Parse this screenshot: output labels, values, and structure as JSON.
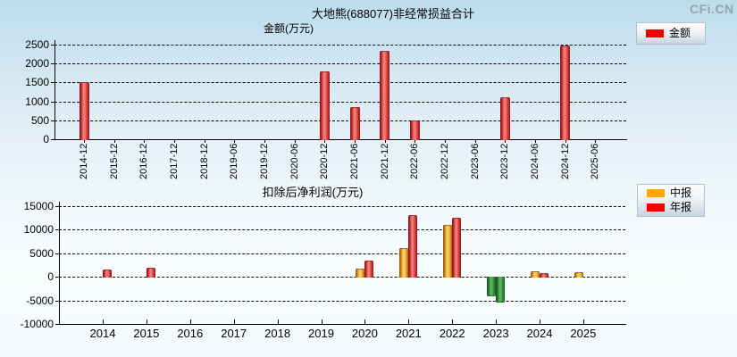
{
  "page": {
    "logo": "CFi.CN"
  },
  "colors": {
    "red": "#ee0000",
    "orange": "#ffa800",
    "green": "#2e8b3a"
  },
  "chart_data": [
    {
      "type": "bar",
      "title": "大地熊(688077)非经常损益合计",
      "ylabel": "金额(万元)",
      "legend": [
        {
          "label": "金额",
          "color_key": "red"
        }
      ],
      "legend_position": "top-right",
      "grid": true,
      "categories": [
        "2014-12",
        "2015-12",
        "2016-12",
        "2017-12",
        "2018-12",
        "2019-06",
        "2019-12",
        "2020-06",
        "2020-12",
        "2021-06",
        "2021-12",
        "2022-06",
        "2022-12",
        "2023-06",
        "2023-12",
        "2024-06",
        "2024-12",
        "2025-06"
      ],
      "values": [
        1520,
        null,
        null,
        null,
        null,
        null,
        null,
        null,
        1800,
        860,
        2330,
        500,
        null,
        null,
        1120,
        null,
        2480,
        null
      ],
      "ylim": [
        0,
        2500
      ],
      "yticks": [
        0,
        500,
        1000,
        1500,
        2000,
        2500
      ]
    },
    {
      "type": "bar",
      "title": "扣除后净利润(万元)",
      "legend": [
        {
          "label": "中报",
          "color_key": "orange"
        },
        {
          "label": "年报",
          "color_key": "red"
        }
      ],
      "legend_position": "top-right",
      "grid": true,
      "negative_color_key": "green",
      "categories": [
        "2014",
        "2015",
        "2016",
        "2017",
        "2018",
        "2019",
        "2020",
        "2021",
        "2022",
        "2023",
        "2024",
        "2025"
      ],
      "series": [
        {
          "name": "中报",
          "color_key": "orange",
          "values": [
            null,
            null,
            null,
            null,
            null,
            null,
            1800,
            6100,
            11100,
            -3950,
            1200,
            1050
          ]
        },
        {
          "name": "年报",
          "color_key": "red",
          "values": [
            1500,
            1950,
            null,
            null,
            null,
            null,
            3500,
            13100,
            12600,
            -5200,
            850,
            null
          ]
        }
      ],
      "ylim": [
        -10000,
        15000
      ],
      "yticks": [
        -10000,
        -5000,
        0,
        5000,
        10000,
        15000
      ]
    }
  ]
}
